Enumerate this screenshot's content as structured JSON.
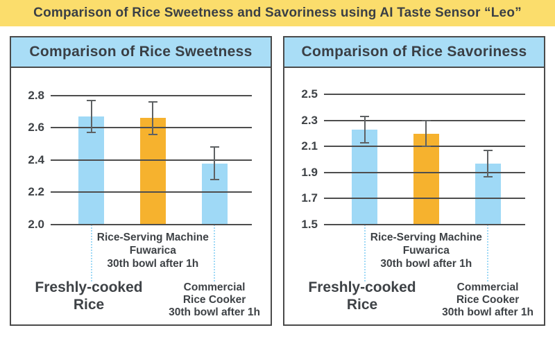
{
  "banner": {
    "title": "Comparison of Rice Sweetness and Savoriness using AI Taste Sensor “Leo”"
  },
  "colors": {
    "banner_bg": "#FBDD6C",
    "banner_text": "#3A3F45",
    "header_bg": "#A9DDF6",
    "panel_border": "#4A4A4A",
    "gridline": "#4D4D4D",
    "bar_blue": "#9FD9F6",
    "bar_orange": "#F6B22E",
    "error_bar": "#5E6163",
    "dotted": "#9FD9F6",
    "text": "#3E4246"
  },
  "chart_data": [
    {
      "type": "bar",
      "title": "Comparison of Rice Sweetness",
      "categories": [
        "Freshly-cooked Rice",
        "Rice-Serving Machine Fuwarica 30th bowl after 1h",
        "Commercial Rice Cooker 30th bowl after 1h"
      ],
      "category_slugs": [
        "freshly-cooked-rice",
        "fuwarica-30th-bowl",
        "commercial-rice-cooker-30th-bowl"
      ],
      "values": [
        2.67,
        2.66,
        2.38
      ],
      "error_high": [
        2.77,
        2.76,
        2.48
      ],
      "error_low": [
        2.57,
        2.56,
        2.28
      ],
      "bar_color_keys": [
        "bar_blue",
        "bar_orange",
        "bar_blue"
      ],
      "ytick_labels": [
        "2.0",
        "2.2",
        "2.4",
        "2.6",
        "2.8"
      ],
      "yticks": [
        2.0,
        2.2,
        2.4,
        2.6,
        2.8
      ],
      "ylim": [
        2.0,
        2.92
      ],
      "grid": true,
      "legend": "none",
      "xlabel": "",
      "ylabel": "",
      "x_group_labels": {
        "left": [
          "Freshly-cooked",
          "Rice"
        ],
        "middle": [
          "Rice-Serving Machine",
          "Fuwarica",
          "30th bowl after 1h"
        ],
        "right": [
          "Commercial",
          "Rice Cooker",
          "30th bowl after 1h"
        ]
      }
    },
    {
      "type": "bar",
      "title": "Comparison of Rice Savoriness",
      "categories": [
        "Freshly-cooked Rice",
        "Rice-Serving Machine Fuwarica 30th bowl after 1h",
        "Commercial Rice Cooker 30th bowl after 1h"
      ],
      "category_slugs": [
        "freshly-cooked-rice",
        "fuwarica-30th-bowl",
        "commercial-rice-cooker-30th-bowl"
      ],
      "values": [
        2.23,
        2.2,
        1.97
      ],
      "error_high": [
        2.33,
        2.3,
        2.07
      ],
      "error_low": [
        2.13,
        2.1,
        1.87
      ],
      "bar_color_keys": [
        "bar_blue",
        "bar_orange",
        "bar_blue"
      ],
      "ytick_labels": [
        "1.5",
        "1.7",
        "1.9",
        "2.1",
        "2.3",
        "2.5"
      ],
      "yticks": [
        1.5,
        1.7,
        1.9,
        2.1,
        2.3,
        2.5
      ],
      "ylim": [
        1.5,
        2.64
      ],
      "grid": true,
      "legend": "none",
      "xlabel": "",
      "ylabel": "",
      "x_group_labels": {
        "left": [
          "Freshly-cooked",
          "Rice"
        ],
        "middle": [
          "Rice-Serving Machine",
          "Fuwarica",
          "30th bowl after 1h"
        ],
        "right": [
          "Commercial",
          "Rice Cooker",
          "30th bowl after 1h"
        ]
      }
    }
  ]
}
